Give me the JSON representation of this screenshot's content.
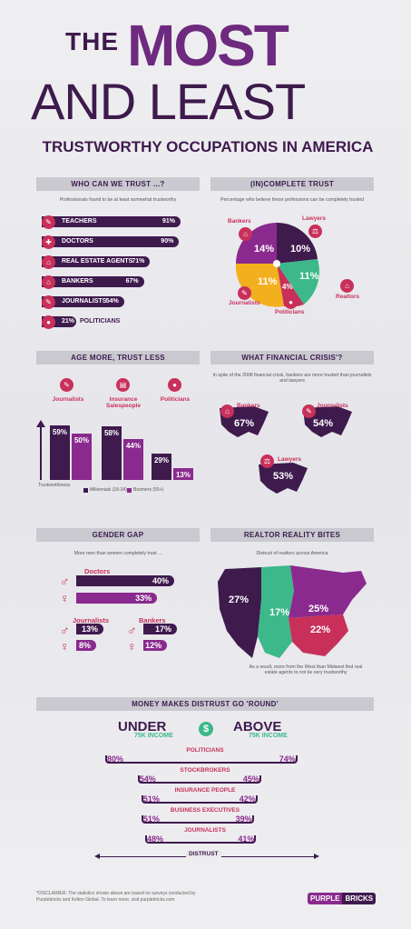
{
  "title": {
    "the": "THE",
    "most": "MOST",
    "and_least": "AND LEAST",
    "subtitle": "TRUSTWORTHY OCCUPATIONS IN AMERICA"
  },
  "colors": {
    "dark_purple": "#3e1a4d",
    "purple": "#8a2a8e",
    "magenta": "#c8305a",
    "green": "#3cb88a",
    "yellow": "#f2b01e",
    "gray": "#c9c9cf"
  },
  "trust": {
    "header": "WHO CAN WE TRUST ...?",
    "subtitle": "Professionals found to be at least somewhat trustworthy",
    "items": [
      {
        "label": "TEACHERS",
        "value": "91%"
      },
      {
        "label": "DOCTORS",
        "value": "90%"
      },
      {
        "label": "REAL ESTATE AGENTS",
        "value": "71%"
      },
      {
        "label": "BANKERS",
        "value": "67%"
      },
      {
        "label": "JOURNALISTS",
        "value": "54%"
      },
      {
        "label": "POLITICIANS",
        "value": "21%"
      }
    ]
  },
  "complete": {
    "header": "(IN)COMPLETE TRUST",
    "subtitle": "Percentage who believe these professions can be completely trusted",
    "labels": {
      "bankers": "Bankers",
      "lawyers": "Lawyers",
      "journalists": "Journalists",
      "politicians": "Politicians",
      "realtors": "Realtors"
    },
    "values": {
      "bankers": "14%",
      "lawyers": "10%",
      "journalists": "11%",
      "politicians": "4%",
      "realtors": "11%"
    }
  },
  "age": {
    "header": "AGE MORE, TRUST LESS",
    "labels": [
      "Journalists",
      "Insurance Salespeople",
      "Politicians"
    ],
    "axis": "Trustworthiness",
    "legend_millennials": "Millennials (18-34)",
    "legend_boomers": "Boomers (55+)",
    "values": [
      "59%",
      "50%",
      "58%",
      "44%",
      "29%",
      "13%"
    ]
  },
  "crisis": {
    "header": "WHAT FINANCIAL CRISIS'?",
    "subtitle": "In spite of the 2008 financial crisis, bankers are more trusted than journalists and lawyers",
    "bankers": "Bankers",
    "bankers_v": "67%",
    "journalists": "Journalists",
    "journalists_v": "54%",
    "lawyers": "Lawyers",
    "lawyers_v": "53%"
  },
  "gender": {
    "header": "GENDER GAP",
    "subtitle": "More men than women completely trust ...",
    "doctors": "Doctors",
    "d_male": "40%",
    "d_female": "33%",
    "journalists": "Journalists",
    "j_male": "13%",
    "j_female": "8%",
    "bankers": "Bankers",
    "b_male": "17%",
    "b_female": "12%"
  },
  "realtor": {
    "header": "REALTOR REALITY BITES",
    "subtitle": "Distrust of realtors across America",
    "west": "27%",
    "midwest": "17%",
    "northeast": "25%",
    "south": "22%",
    "note": "As a result, more from the West than Midwest find real estate agents to not be very trustworthy"
  },
  "money": {
    "header": "MONEY MAKES DISTRUST GO 'ROUND'",
    "under": "UNDER",
    "under_sub": "75K INCOME",
    "above": "ABOVE",
    "above_sub": "75K INCOME",
    "dollar": "$",
    "distrust": "DISTRUST",
    "rows": [
      {
        "label": "POLITICIANS",
        "under": "80%",
        "above": "74%"
      },
      {
        "label": "STOCKBROKERS",
        "under": "54%",
        "above": "45%"
      },
      {
        "label": "INSURANCE PEOPLE",
        "under": "51%",
        "above": "42%"
      },
      {
        "label": "BUSINESS EXECUTIVES",
        "under": "51%",
        "above": "39%"
      },
      {
        "label": "JOURNALISTS",
        "under": "48%",
        "above": "41%"
      }
    ]
  },
  "footer": {
    "disclaimer": "*DISCLAIMER: The statistics shown above are based on surveys conducted by Purplebricks and Kelton Global. To learn more, visit purplebricks.com",
    "logo_a": "PURPLE",
    "logo_b": "BRICKS"
  },
  "chart_data": [
    {
      "type": "bar",
      "title": "WHO CAN WE TRUST ...?",
      "categories": [
        "TEACHERS",
        "DOCTORS",
        "REAL ESTATE AGENTS",
        "BANKERS",
        "JOURNALISTS",
        "POLITICIANS"
      ],
      "values": [
        91,
        90,
        71,
        67,
        54,
        21
      ]
    },
    {
      "type": "pie",
      "title": "(IN)COMPLETE TRUST",
      "categories": [
        "Bankers",
        "Lawyers",
        "Realtors",
        "Politicians",
        "Journalists"
      ],
      "values": [
        14,
        10,
        11,
        4,
        11
      ]
    },
    {
      "type": "bar",
      "title": "AGE MORE, TRUST LESS",
      "categories": [
        "Journalists",
        "Insurance Salespeople",
        "Politicians"
      ],
      "series": [
        {
          "name": "Millennials (18-34)",
          "values": [
            59,
            58,
            29
          ]
        },
        {
          "name": "Boomers (55+)",
          "values": [
            50,
            44,
            13
          ]
        }
      ]
    },
    {
      "type": "bar",
      "title": "GENDER GAP",
      "categories": [
        "Doctors",
        "Journalists",
        "Bankers"
      ],
      "series": [
        {
          "values": [
            40,
            13,
            17
          ]
        },
        {
          "values": [
            33,
            8,
            12
          ]
        }
      ]
    },
    {
      "type": "bar",
      "title": "MONEY MAKES DISTRUST GO 'ROUND'",
      "categories": [
        "POLITICIANS",
        "STOCKBROKERS",
        "INSURANCE PEOPLE",
        "BUSINESS EXECUTIVES",
        "JOURNALISTS"
      ],
      "series": [
        {
          "name": "UNDER 75K INCOME",
          "values": [
            80,
            54,
            51,
            51,
            48
          ]
        },
        {
          "name": "ABOVE 75K INCOME",
          "values": [
            74,
            45,
            42,
            39,
            41
          ]
        }
      ]
    }
  ]
}
